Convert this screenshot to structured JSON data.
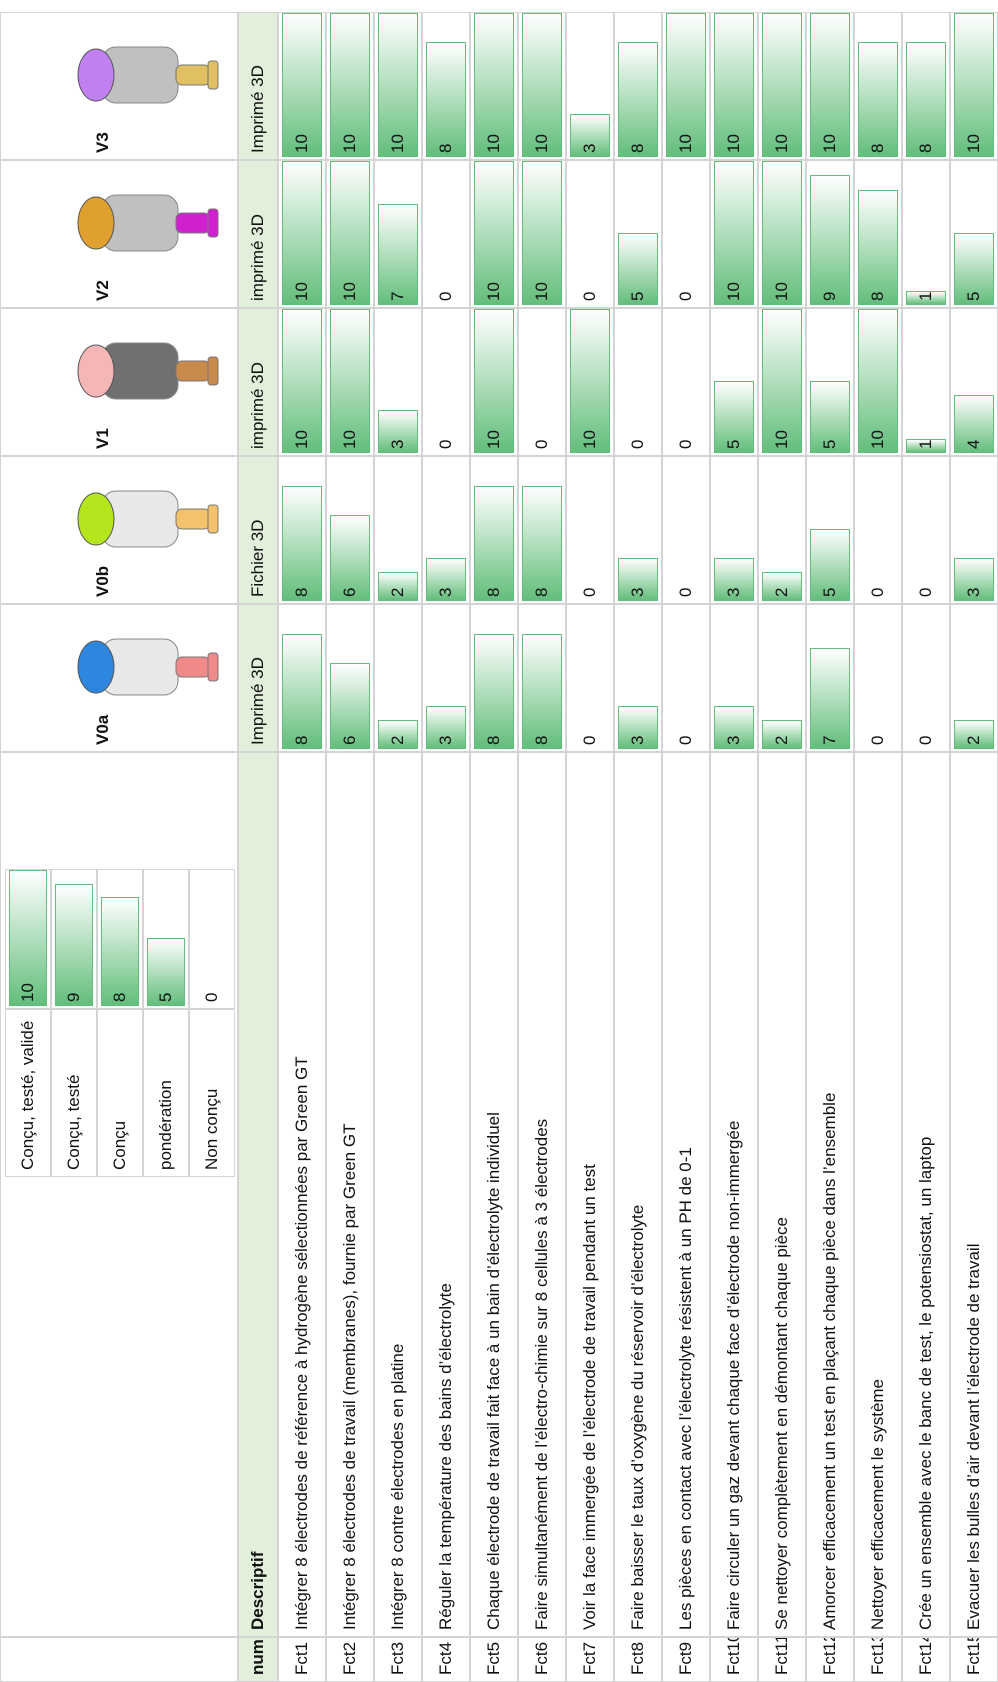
{
  "legend": [
    {
      "label": "Conçu, testé, validé",
      "value": 10
    },
    {
      "label": "Conçu, testé",
      "value": 9
    },
    {
      "label": "Conçu",
      "value": 8
    },
    {
      "label": "pondération",
      "value": 5
    },
    {
      "label": "Non conçu",
      "value": 0
    }
  ],
  "bar_color": "#63be7b",
  "table": {
    "headers": [
      "num",
      "Descriptif"
    ],
    "versions": [
      {
        "name": "V0a",
        "fabrication": "Imprimé 3D"
      },
      {
        "name": "V0b",
        "fabrication": "Fichier 3D"
      },
      {
        "name": "V1",
        "fabrication": "imprimé 3D"
      },
      {
        "name": "V2",
        "fabrication": "imprimé 3D"
      },
      {
        "name": "V3",
        "fabrication": "Imprimé 3D"
      }
    ],
    "rows": [
      {
        "num": "Fct1",
        "descriptif": "Intégrer 8 électrodes de référence à hydrogène sélectionnées par Green GT",
        "scores": [
          8,
          8,
          10,
          10,
          10
        ]
      },
      {
        "num": "Fct2",
        "descriptif": "Intégrer 8 électrodes de travail (membranes), fournie par Green GT",
        "scores": [
          6,
          6,
          10,
          10,
          10
        ]
      },
      {
        "num": "Fct3",
        "descriptif": "Intégrer 8 contre électrodes en platine",
        "scores": [
          2,
          2,
          3,
          7,
          10
        ]
      },
      {
        "num": "Fct4",
        "descriptif": "Réguler la température des bains d’électrolyte",
        "scores": [
          3,
          3,
          0,
          0,
          8
        ]
      },
      {
        "num": "Fct5",
        "descriptif": "Chaque électrode de travail fait face à un bain d’électrolyte individuel",
        "scores": [
          8,
          8,
          10,
          10,
          10
        ]
      },
      {
        "num": "Fct6",
        "descriptif": "Faire simultanément de l’électro-chimie sur 8 cellules à 3 électrodes",
        "scores": [
          8,
          8,
          0,
          10,
          10
        ]
      },
      {
        "num": "Fct7",
        "descriptif": "Voir la face immergée de l’électrode de travail pendant un test",
        "scores": [
          0,
          0,
          10,
          0,
          3
        ]
      },
      {
        "num": "Fct8",
        "descriptif": "Faire baisser le taux d’oxygène du réservoir d’électrolyte",
        "scores": [
          3,
          3,
          0,
          5,
          8
        ]
      },
      {
        "num": "Fct9",
        "descriptif": "Les pièces en contact avec l’électrolyte résistent à un PH de 0-1",
        "scores": [
          0,
          0,
          0,
          0,
          10
        ]
      },
      {
        "num": "Fct10",
        "descriptif": "Faire circuler un gaz devant chaque face d’électrode non-immergée",
        "scores": [
          3,
          3,
          5,
          10,
          10
        ]
      },
      {
        "num": "Fct11",
        "descriptif": "Se nettoyer complètement en démontant chaque pièce",
        "scores": [
          2,
          2,
          10,
          10,
          10
        ]
      },
      {
        "num": "Fct12",
        "descriptif": "Amorcer efficacement un test en plaçant chaque pièce dans l’ensemble",
        "scores": [
          7,
          5,
          5,
          9,
          10
        ]
      },
      {
        "num": "Fct13",
        "descriptif": "Nettoyer efficacement le système",
        "scores": [
          0,
          0,
          10,
          8,
          8
        ]
      },
      {
        "num": "Fct14",
        "descriptif": "Crée un ensemble avec le banc de test, le potensiostat, un laptop",
        "scores": [
          0,
          0,
          1,
          1,
          8
        ]
      },
      {
        "num": "Fct15",
        "descriptif": "Evacuer les bulles d’air devant l’électrode de travail",
        "scores": [
          2,
          3,
          4,
          5,
          10
        ]
      }
    ]
  }
}
